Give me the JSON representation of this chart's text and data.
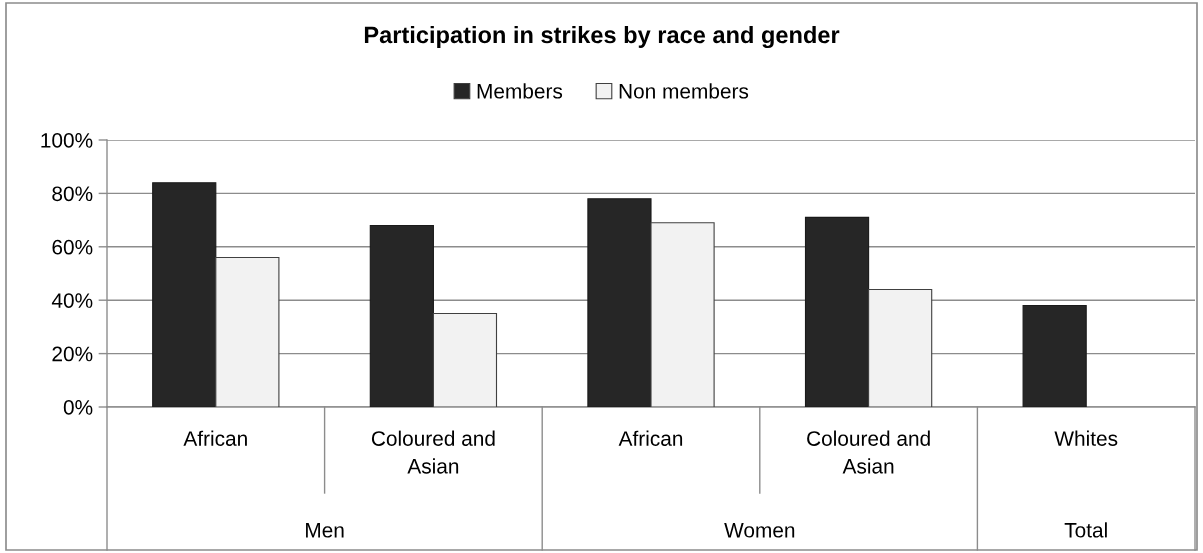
{
  "chart_data": {
    "type": "bar",
    "title": "Participation in strikes by race and gender",
    "categories": [
      "African",
      "Coloured and Asian",
      "African",
      "Coloured and Asian",
      "Whites"
    ],
    "series": [
      {
        "name": "Members",
        "color": "#262626",
        "values": [
          84,
          68,
          78,
          71,
          38
        ]
      },
      {
        "name": "Non members",
        "color": "#f2f2f2",
        "values": [
          56,
          35,
          69,
          44,
          null
        ]
      }
    ],
    "ylim": [
      0,
      100
    ],
    "yticks": [
      {
        "value": 0,
        "label": "0%"
      },
      {
        "value": 20,
        "label": "20%"
      },
      {
        "value": 40,
        "label": "40%"
      },
      {
        "value": 60,
        "label": "60%"
      },
      {
        "value": 80,
        "label": "80%"
      },
      {
        "value": 100,
        "label": "100%"
      }
    ],
    "grid": "y",
    "legend": "top",
    "annotations": [
      "Men",
      "Women",
      "Total"
    ]
  }
}
